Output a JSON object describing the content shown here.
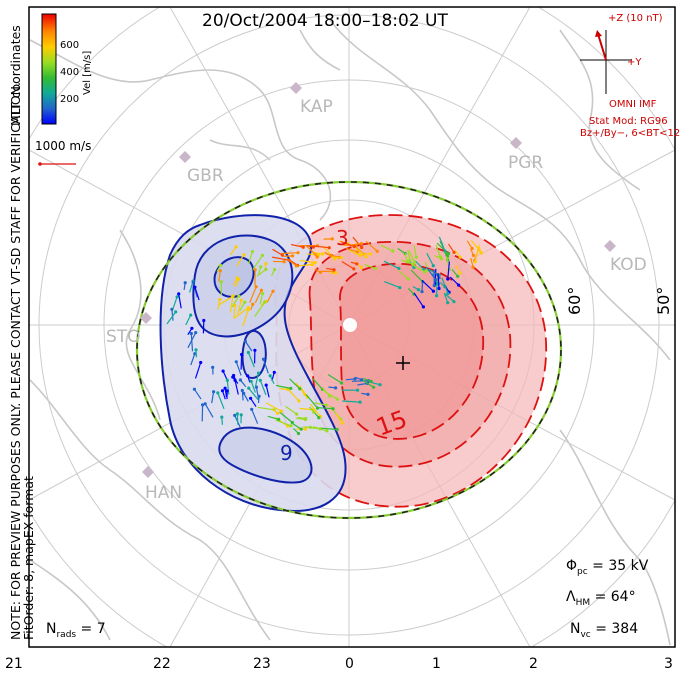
{
  "title": "20/Oct/2004 18:00–18:02 UT",
  "side_note_1": "NOTE: FOR PREVIEW PURPOSES ONLY. PLEASE CONTACT VT-SD STAFF FOR VERIFICATION.",
  "side_note_2": "FitOrder: 8, mapEX format",
  "coordinates_label": "MLT coordinates",
  "colorbar": {
    "title": "Vel [m/s]",
    "ticks": [
      "200",
      "400",
      "600"
    ],
    "colors": [
      "#0000ff",
      "#2266cc",
      "#11aa99",
      "#33bb33",
      "#99dd22",
      "#ffcc00",
      "#ff8800",
      "#ff4400",
      "#ee0000"
    ]
  },
  "scale_vector": "1000 m/s",
  "imf": {
    "z_label": "+Z (10 nT)",
    "y_label": "+Y",
    "source": "OMNI IMF",
    "stat_mod": "Stat Mod: RG96",
    "condition": "Bz+/By−, 6<BT<12"
  },
  "sites": [
    "KAP",
    "PGR",
    "GBR",
    "KOD",
    "STO",
    "HAN"
  ],
  "lat_labels": [
    "60°",
    "50°"
  ],
  "mlt_ticks": [
    "21",
    "22",
    "23",
    "0",
    "1",
    "2",
    "3"
  ],
  "contour_labels": [
    "3",
    "15",
    "9"
  ],
  "stats": {
    "phi_label": "Φ",
    "phi_sub": "pc",
    "phi_value": " = 35 kV",
    "lam_label": "Λ",
    "lam_sub": "HM",
    "lam_value": " = 64°",
    "nvc_label": "N",
    "nvc_sub": "vc",
    "nvc_value": " = 384",
    "nrads_label": "N",
    "nrads_sub": "rads",
    "nrads_value": " = 7"
  },
  "colors": {
    "positive_cell": "#f5b6b6",
    "negative_cell": "#d9dcef",
    "positive_contour": "#dd1111",
    "negative_contour": "#1122aa",
    "boundary": "#88cc33",
    "grid": "#cccccc",
    "coast": "#c8c8c8",
    "imf_red": "#cc0000"
  }
}
